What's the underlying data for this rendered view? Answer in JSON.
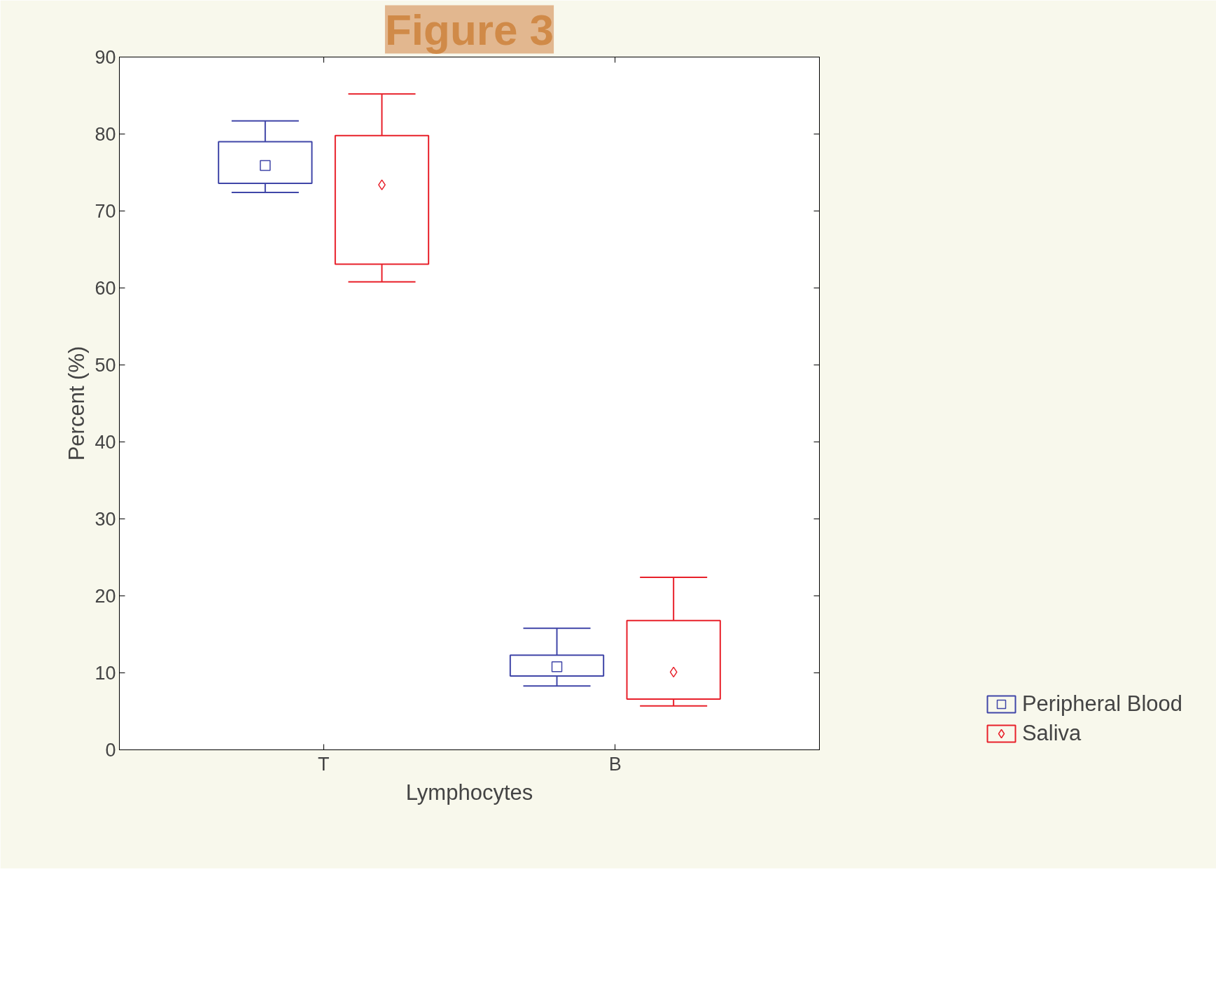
{
  "chart_data": {
    "type": "box",
    "title": "Figure 3",
    "xlabel": "Lymphocytes",
    "ylabel": "Percent (%)",
    "categories": [
      "T",
      "B"
    ],
    "ylim": [
      0,
      90
    ],
    "yticks": [
      0,
      10,
      20,
      30,
      40,
      50,
      60,
      70,
      80,
      90
    ],
    "legend": "bottom right",
    "series": [
      {
        "name": "Peripheral Blood",
        "color": "#4046a8",
        "marker": "square",
        "boxes": [
          {
            "low": 72.4,
            "q1": 73.6,
            "median": 75.9,
            "q3": 79.0,
            "high": 81.7
          },
          {
            "low": 8.3,
            "q1": 9.6,
            "median": 10.8,
            "q3": 12.3,
            "high": 15.8
          }
        ]
      },
      {
        "name": "Saliva",
        "color": "#e8202a",
        "marker": "diamond",
        "boxes": [
          {
            "low": 60.8,
            "q1": 63.1,
            "median": 73.4,
            "q3": 79.8,
            "high": 85.2
          },
          {
            "low": 5.7,
            "q1": 6.6,
            "median": 10.1,
            "q3": 16.8,
            "high": 22.4
          }
        ]
      }
    ]
  }
}
